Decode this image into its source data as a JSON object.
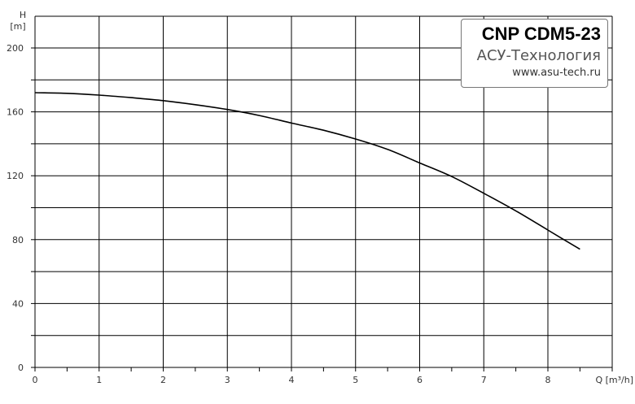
{
  "chart_data": {
    "type": "line",
    "xlabel": "Q [m³/h]",
    "ylabel": "H",
    "yunit": "[m]",
    "xlim": [
      0,
      9
    ],
    "ylim": [
      0,
      210
    ],
    "x_ticks": [
      0,
      1,
      2,
      3,
      4,
      5,
      6,
      7,
      8
    ],
    "y_ticks": [
      0,
      40,
      80,
      120,
      160,
      200
    ],
    "grid": true,
    "series": [
      {
        "x": [
          0,
          0.5,
          1,
          1.5,
          2,
          2.5,
          3,
          3.5,
          4,
          4.5,
          5,
          5.5,
          6,
          6.5,
          7,
          7.5,
          8,
          8.5
        ],
        "y": [
          172,
          171.6,
          170.5,
          168.9,
          167,
          164.5,
          161.5,
          157.7,
          153,
          148.5,
          143,
          136.5,
          128,
          119.5,
          109,
          98,
          86,
          74
        ]
      }
    ],
    "colors": {
      "curve": "#000000",
      "grid": "#000000",
      "background": "#ffffff"
    }
  },
  "legend": {
    "title": "CNP CDM5-23",
    "company": "АСУ-Технология",
    "url": "www.asu-tech.ru"
  }
}
